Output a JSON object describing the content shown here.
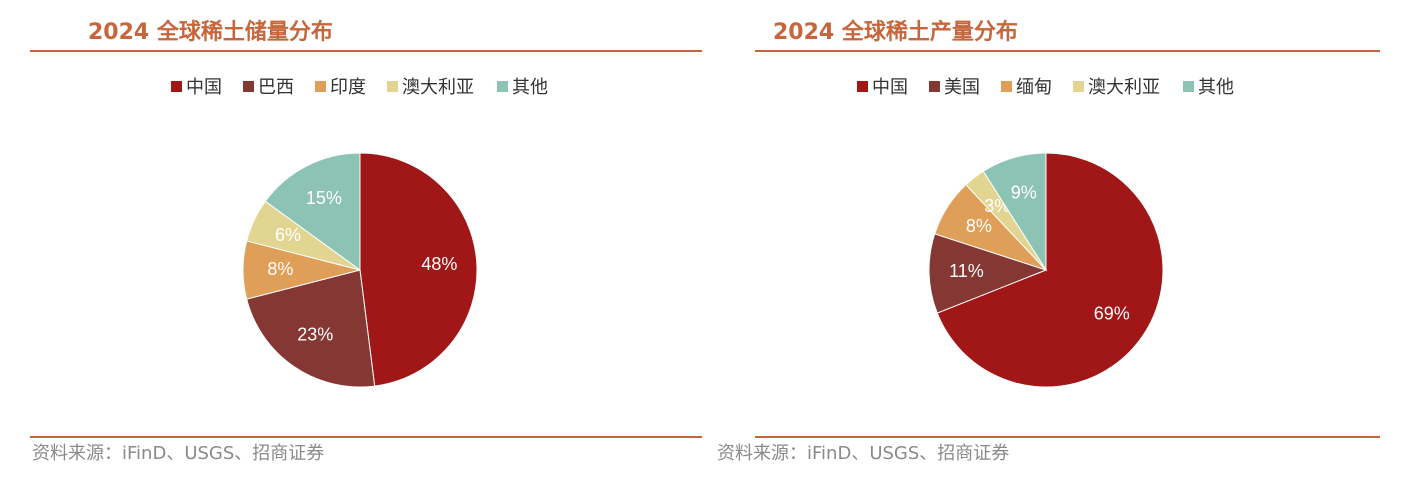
{
  "chart_data": [
    {
      "type": "pie",
      "title": "2024 全球稀土储量分布",
      "source": "资料来源：iFinD、USGS、招商证券",
      "categories": [
        "中国",
        "巴西",
        "印度",
        "澳大利亚",
        "其他"
      ],
      "values": [
        48,
        23,
        8,
        6,
        15
      ],
      "value_labels": [
        "48%",
        "23%",
        "8%",
        "6%",
        "15%"
      ],
      "colors": [
        "#a11616",
        "#853733",
        "#e09f58",
        "#e2d592",
        "#8cc3b5"
      ]
    },
    {
      "type": "pie",
      "title": "2024 全球稀土产量分布",
      "source": "资料来源：iFinD、USGS、招商证券",
      "categories": [
        "中国",
        "美国",
        "缅甸",
        "澳大利亚",
        "其他"
      ],
      "values": [
        69,
        11,
        8,
        3,
        9
      ],
      "value_labels": [
        "69%",
        "11%",
        "8%",
        "3%",
        "9%"
      ],
      "colors": [
        "#a11616",
        "#853733",
        "#e09f58",
        "#e2d592",
        "#8cc3b5"
      ]
    }
  ]
}
